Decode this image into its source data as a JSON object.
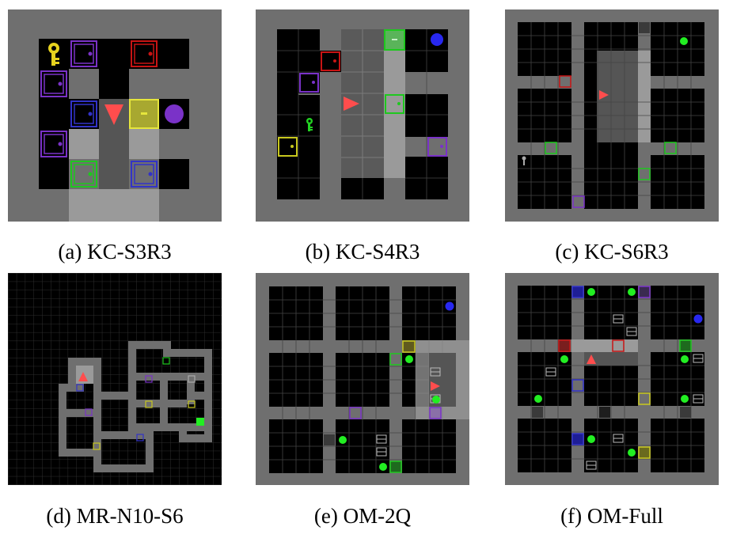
{
  "figure": {
    "panels": [
      {
        "id": "a",
        "caption": "(a) KC-S3R3",
        "scene": "gridworld-keycorridor"
      },
      {
        "id": "b",
        "caption": "(b) KC-S4R3",
        "scene": "gridworld-keycorridor"
      },
      {
        "id": "c",
        "caption": "(c) KC-S6R3",
        "scene": "gridworld-keycorridor"
      },
      {
        "id": "d",
        "caption": "(d) MR-N10-S6",
        "scene": "gridworld-multiroom"
      },
      {
        "id": "e",
        "caption": "(e) OM-2Q",
        "scene": "gridworld-obstructedmaze"
      },
      {
        "id": "f",
        "caption": "(f) OM-Full",
        "scene": "gridworld-obstructedmaze"
      }
    ],
    "colors": {
      "wall": "#6f6f6f",
      "floor": "#000000",
      "visible": "#9a9a9a",
      "grid": "#5a5a5a",
      "agent": "#ff4d4d",
      "purple": "#7a32c8",
      "red": "#c81414",
      "blue": "#3232c8",
      "yellow": "#c8c81e",
      "green": "#1ec81e",
      "lime": "#22ee22",
      "grey": "#646464"
    }
  }
}
